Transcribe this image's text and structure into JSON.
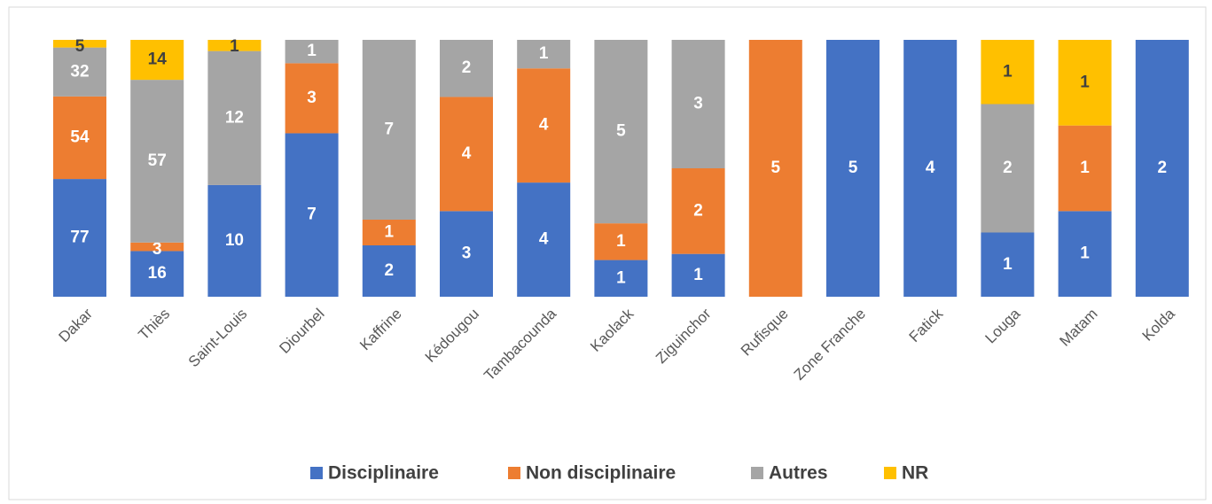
{
  "chart_data": {
    "type": "bar",
    "stacking": "percent",
    "categories": [
      "Dakar",
      "Thiès",
      "Saint-Louis",
      "Diourbel",
      "Kaffrine",
      "Kédougou",
      "Tambacounda",
      "Kaolack",
      "Ziguinchor",
      "Rufisque",
      "Zone Franche",
      "Fatick",
      "Louga",
      "Matam",
      "Kolda"
    ],
    "series": [
      {
        "name": "Disciplinaire",
        "color": "#4472c4",
        "values": [
          77,
          16,
          10,
          7,
          2,
          3,
          4,
          1,
          1,
          null,
          5,
          4,
          1,
          1,
          2
        ]
      },
      {
        "name": "Non disciplinaire",
        "color": "#ed7d31",
        "values": [
          54,
          3,
          null,
          3,
          1,
          4,
          4,
          1,
          2,
          5,
          null,
          null,
          null,
          1,
          null
        ]
      },
      {
        "name": "Autres",
        "color": "#a5a5a5",
        "values": [
          32,
          57,
          12,
          1,
          7,
          2,
          1,
          5,
          3,
          null,
          null,
          null,
          2,
          null,
          null
        ]
      },
      {
        "name": "NR",
        "color": "#ffc000",
        "values": [
          5,
          14,
          1,
          null,
          null,
          null,
          null,
          null,
          null,
          null,
          null,
          null,
          1,
          1,
          null
        ]
      }
    ],
    "legend": "bottom"
  }
}
